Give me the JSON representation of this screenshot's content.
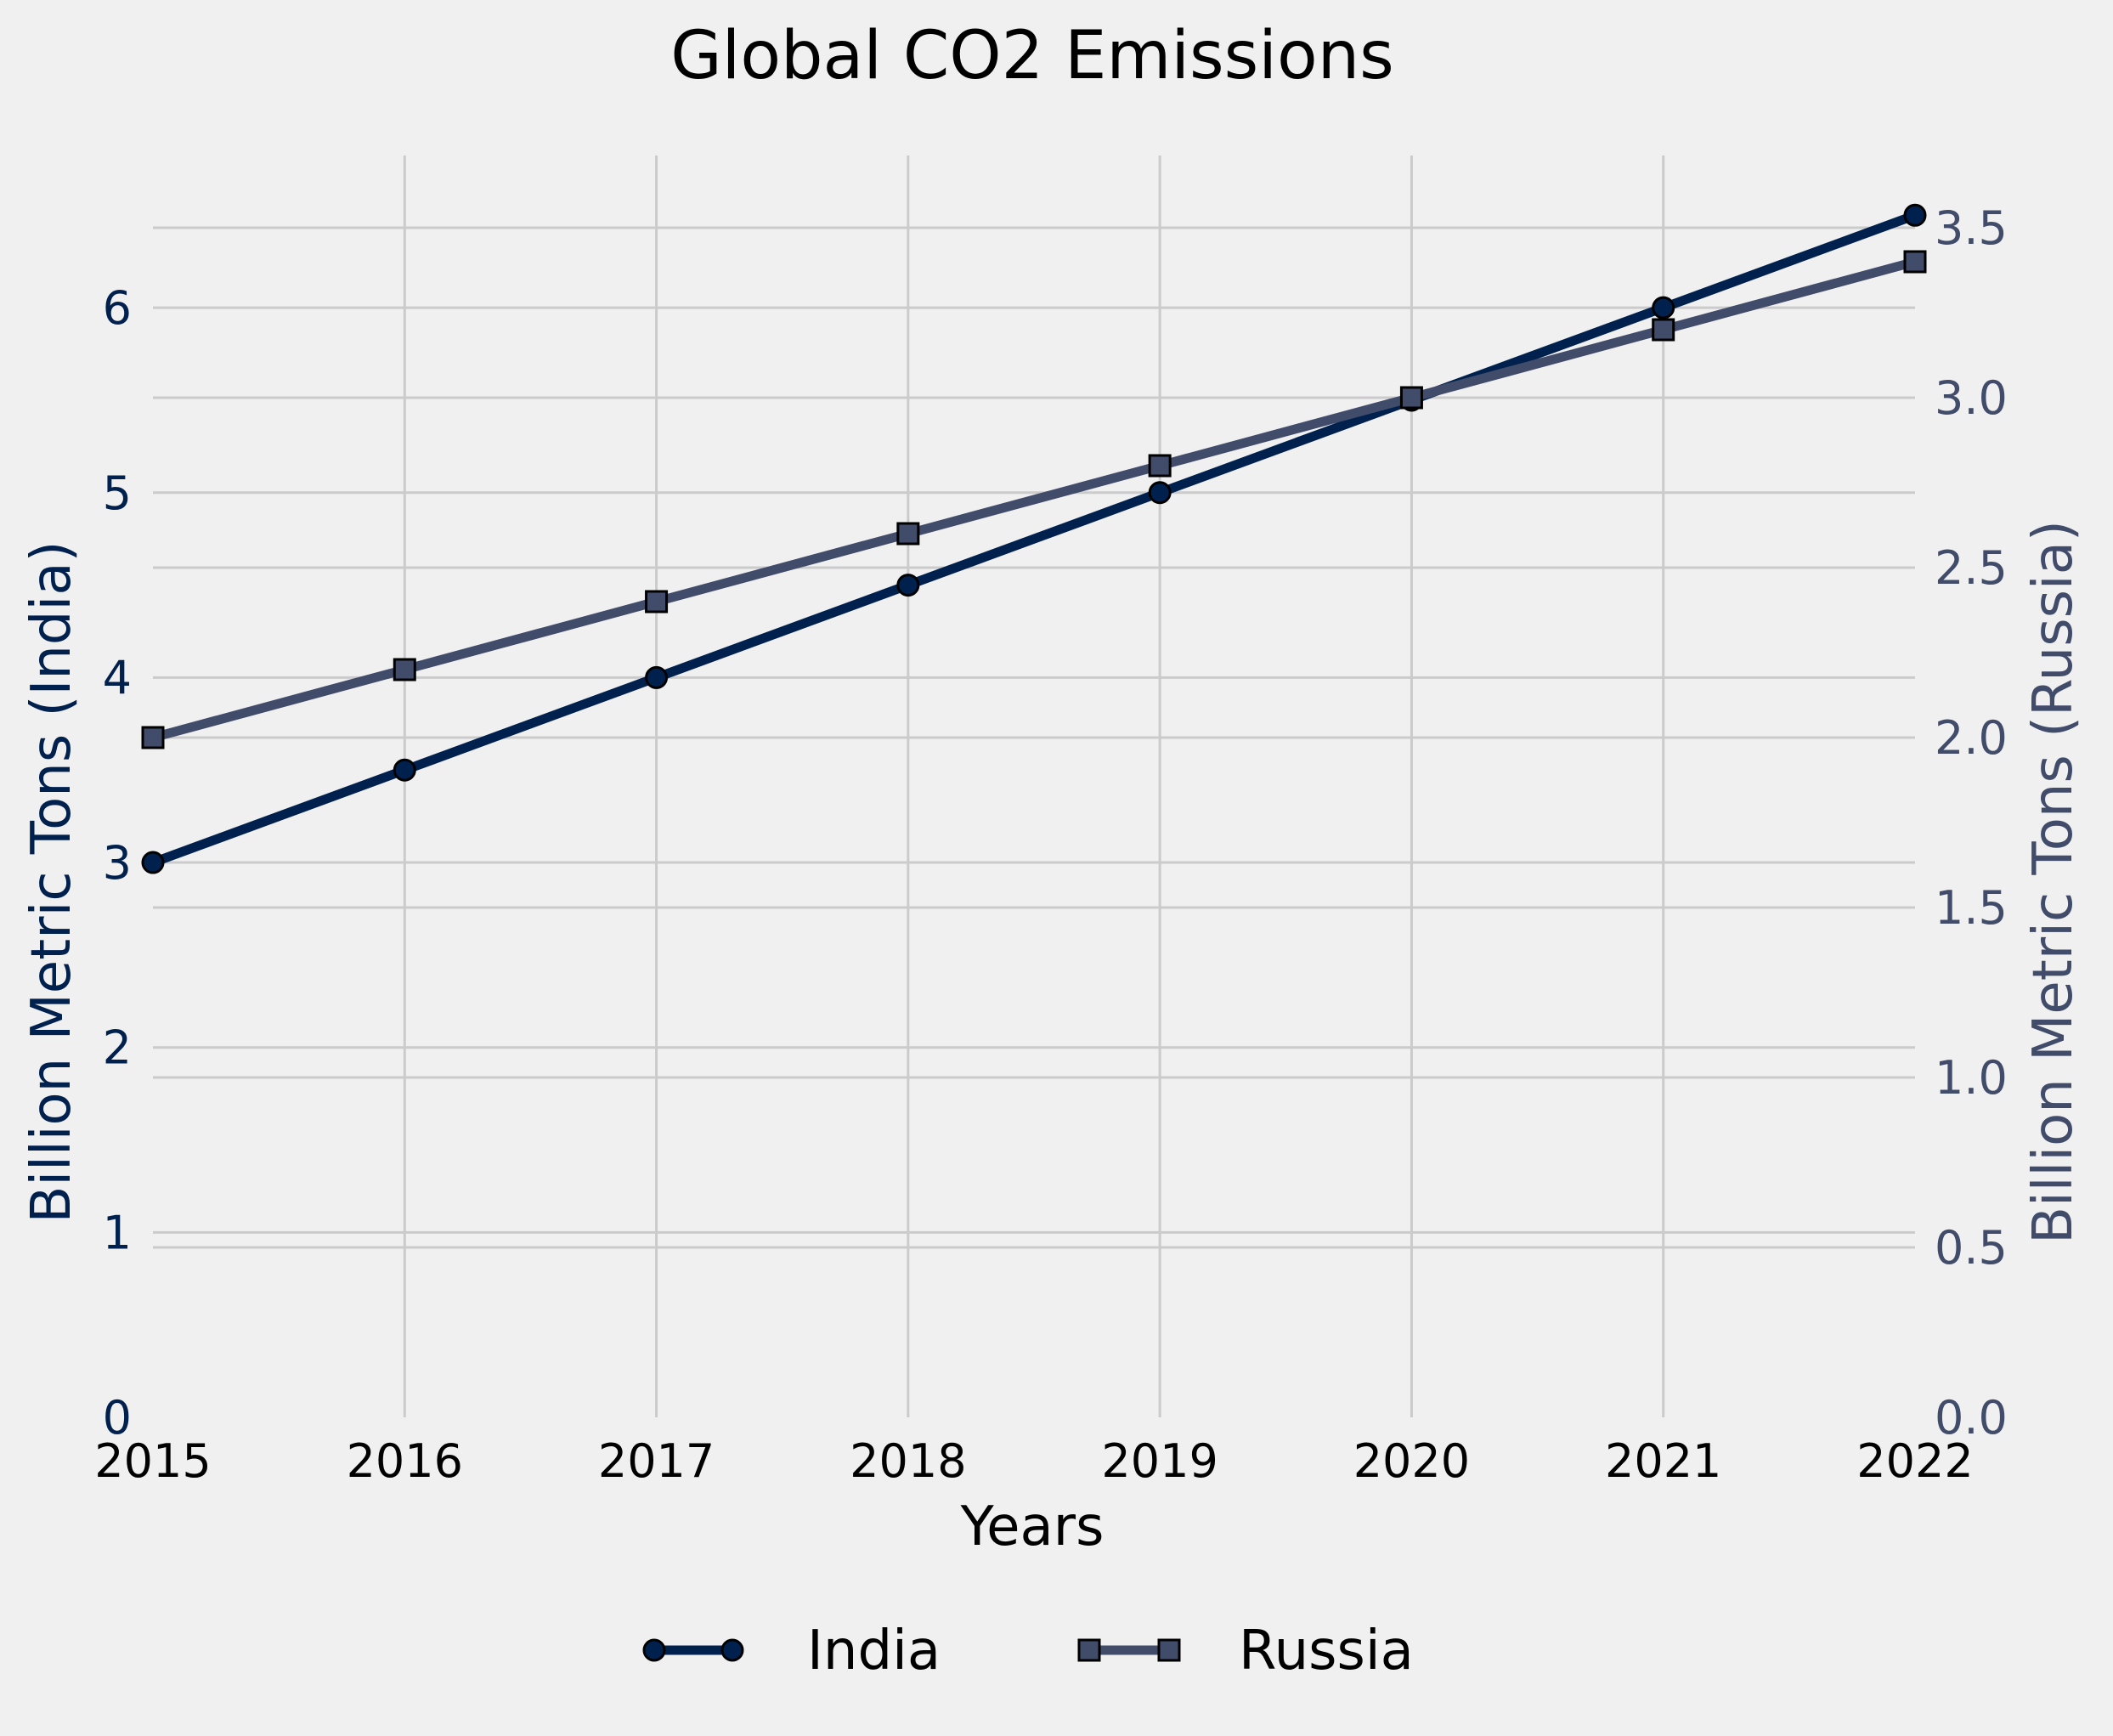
{
  "chart_data": {
    "type": "line",
    "title": "Global CO2 Emissions",
    "xlabel": "Years",
    "ylabel_left": "Billion Metric Tons (India)",
    "ylabel_right": "Billion Metric Tons (Russia)",
    "x": [
      2015,
      2016,
      2017,
      2018,
      2019,
      2020,
      2021,
      2022
    ],
    "xlim": [
      2015,
      2022
    ],
    "ylim_left": [
      0,
      6.8
    ],
    "ylim_right": [
      0,
      3.7
    ],
    "yticks_left": [
      0,
      1,
      2,
      3,
      4,
      5,
      6
    ],
    "yticks_right": [
      0.0,
      0.5,
      1.0,
      1.5,
      2.0,
      2.5,
      3.0,
      3.5
    ],
    "grid": true,
    "legend_position": "bottom-center",
    "series": [
      {
        "name": "India",
        "axis": "left",
        "marker": "circle",
        "color": "#00204e",
        "values": [
          3.0,
          3.5,
          4.0,
          4.5,
          5.0,
          5.5,
          6.0,
          6.5
        ]
      },
      {
        "name": "Russia",
        "axis": "right",
        "marker": "square",
        "color": "#414b6a",
        "values": [
          2.0,
          2.2,
          2.4,
          2.6,
          2.8,
          3.0,
          3.2,
          3.4
        ]
      }
    ]
  },
  "colors": {
    "background": "#f0f0f0",
    "grid": "#cbcbcb",
    "left_axis_text": "#00204e",
    "right_axis_text": "#414b6a",
    "text": "#000000"
  }
}
